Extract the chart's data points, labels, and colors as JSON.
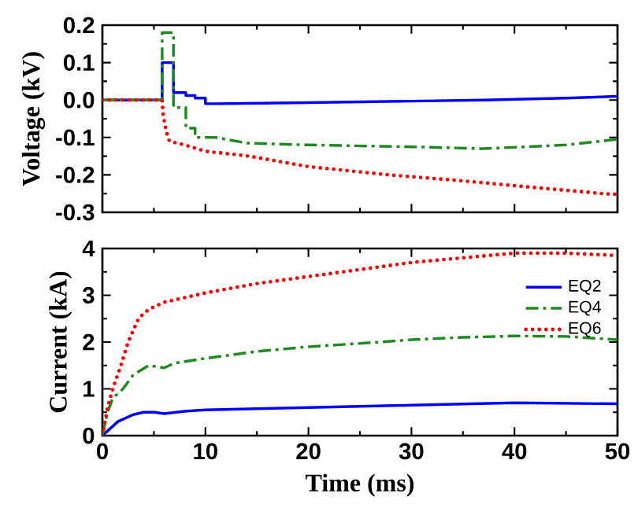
{
  "chart_data": [
    {
      "type": "line",
      "ylabel": "Voltage (kV)",
      "xlim": [
        0,
        50
      ],
      "ylim": [
        -0.3,
        0.2
      ],
      "xticks": [
        {
          "value": 0,
          "label": null
        },
        {
          "value": 10,
          "label": null
        },
        {
          "value": 20,
          "label": null
        },
        {
          "value": 30,
          "label": null
        },
        {
          "value": 40,
          "label": null
        },
        {
          "value": 50,
          "label": null
        }
      ],
      "yticks": [
        -0.3,
        -0.2,
        -0.1,
        {
          "value": 0,
          "label": "0.0"
        },
        0.1,
        0.2
      ],
      "tick_labels": "y",
      "grid": false,
      "series": [
        {
          "color": "#0000ff",
          "line_style": "solid",
          "x": [
            0,
            5.8,
            5.8,
            6.9,
            6.9,
            8.1,
            8.1,
            9.0,
            9.0,
            10.0,
            10.0,
            11.0,
            20,
            30,
            37,
            45,
            50
          ],
          "values": [
            0,
            0,
            0.1,
            0.1,
            0.02,
            0.02,
            0.012,
            0.012,
            0.005,
            0.005,
            -0.01,
            -0.01,
            -0.007,
            -0.003,
            0,
            0.005,
            0.01
          ]
        },
        {
          "color": "#1f8a1f",
          "line_style": "dashdot",
          "x": [
            0,
            5.8,
            5.8,
            6.9,
            6.9,
            8.1,
            8.1,
            9.0,
            9.0,
            11.0,
            14,
            20,
            30,
            37,
            45,
            50
          ],
          "values": [
            0,
            0,
            0.18,
            0.18,
            -0.02,
            -0.02,
            -0.075,
            -0.075,
            -0.1,
            -0.1,
            -0.115,
            -0.12,
            -0.125,
            -0.13,
            -0.12,
            -0.105
          ]
        },
        {
          "color": "#ff0000",
          "line_style": "dotted",
          "x": [
            0,
            5.8,
            5.9,
            6.2,
            6.5,
            8,
            10,
            14,
            20,
            27.8,
            35,
            42,
            49,
            50
          ],
          "values": [
            0,
            0,
            -0.04,
            -0.085,
            -0.11,
            -0.12,
            -0.137,
            -0.149,
            -0.178,
            -0.2,
            -0.216,
            -0.234,
            -0.251,
            -0.252
          ]
        }
      ]
    },
    {
      "type": "line",
      "xlabel": "Time (ms)",
      "ylabel": "Current (kA)",
      "xlim": [
        0,
        50
      ],
      "ylim": [
        0,
        4
      ],
      "xticks": [
        0,
        10,
        20,
        30,
        40,
        50
      ],
      "yticks": [
        0,
        1,
        2,
        3,
        4
      ],
      "grid": false,
      "legend": "top right",
      "series": [
        {
          "name": "EQ2",
          "color": "#0000ff",
          "line_style": "solid",
          "x": [
            0,
            1,
            1.5,
            3,
            4,
            5,
            6,
            8,
            10,
            20,
            30,
            40,
            50
          ],
          "values": [
            0,
            0.2,
            0.3,
            0.45,
            0.5,
            0.5,
            0.47,
            0.52,
            0.55,
            0.6,
            0.65,
            0.7,
            0.68
          ]
        },
        {
          "name": "EQ4",
          "color": "#1f8a1f",
          "line_style": "dashdot",
          "x": [
            0,
            0.5,
            1,
            2,
            3,
            4.5,
            6,
            7,
            10,
            15,
            20,
            27,
            30,
            35,
            40,
            45,
            50
          ],
          "values": [
            0,
            0.5,
            0.8,
            1.0,
            1.3,
            1.5,
            1.45,
            1.55,
            1.65,
            1.8,
            1.9,
            2.0,
            2.05,
            2.1,
            2.13,
            2.12,
            2.05
          ]
        },
        {
          "name": "EQ6",
          "color": "#ff0000",
          "line_style": "dotted",
          "x": [
            0,
            0.5,
            1,
            1.8,
            2.5,
            3.5,
            4.5,
            6,
            7,
            10,
            15,
            20,
            25,
            30,
            35,
            40,
            45,
            50
          ],
          "values": [
            0,
            0.6,
            1.0,
            1.5,
            2.0,
            2.5,
            2.7,
            2.85,
            2.9,
            3.05,
            3.25,
            3.4,
            3.55,
            3.7,
            3.8,
            3.9,
            3.9,
            3.85
          ]
        }
      ]
    }
  ]
}
